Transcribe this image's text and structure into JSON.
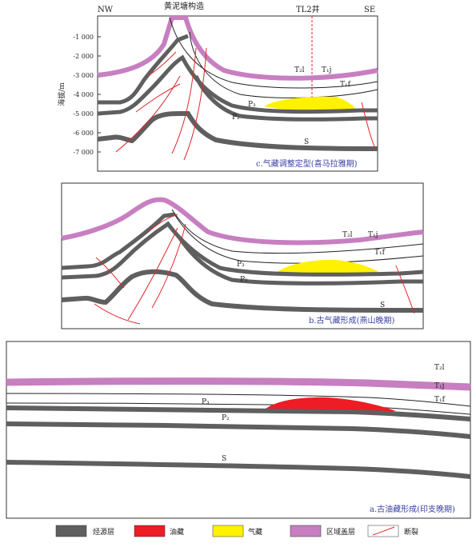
{
  "panels": {
    "c": {
      "nw": "NW",
      "se": "SE",
      "structure_title": "黄泥塘构造",
      "well": "TL2井",
      "yaxis_title": "海拔/m",
      "ticks": [
        "-1 000",
        "-2 000",
        "-3 000",
        "-4 000",
        "-5 000",
        "-6 000",
        "-7 000"
      ],
      "layers": {
        "T2l": "T₂l",
        "T1j": "T₁j",
        "T1f": "T₁f",
        "P3": "P₃",
        "P2": "P₂",
        "S": "S"
      },
      "caption": "c.气藏调整定型(喜马拉雅期)"
    },
    "b": {
      "layers": {
        "T2l": "T₂l",
        "T1j": "T₁j",
        "T1f": "T₁f",
        "P3": "P₃",
        "P2": "P₂",
        "S": "S"
      },
      "caption": "b.古气藏形成(燕山晚期)"
    },
    "a": {
      "layers": {
        "T2l": "T₂l",
        "T1j": "T₁j",
        "T1f": "T₁f",
        "P3": "P₃",
        "P2": "P₂",
        "S": "S"
      },
      "caption": "a.古油藏形成(印支晚期)"
    }
  },
  "legend": [
    {
      "label": "烃源层",
      "color": "#5f5f5f"
    },
    {
      "label": "油藏",
      "color": "#ee1c24"
    },
    {
      "label": "气藏",
      "color": "#fff200"
    },
    {
      "label": "区域盖层",
      "color": "#c77fc1"
    },
    {
      "label": "断裂",
      "color": "#e3262b"
    }
  ]
}
